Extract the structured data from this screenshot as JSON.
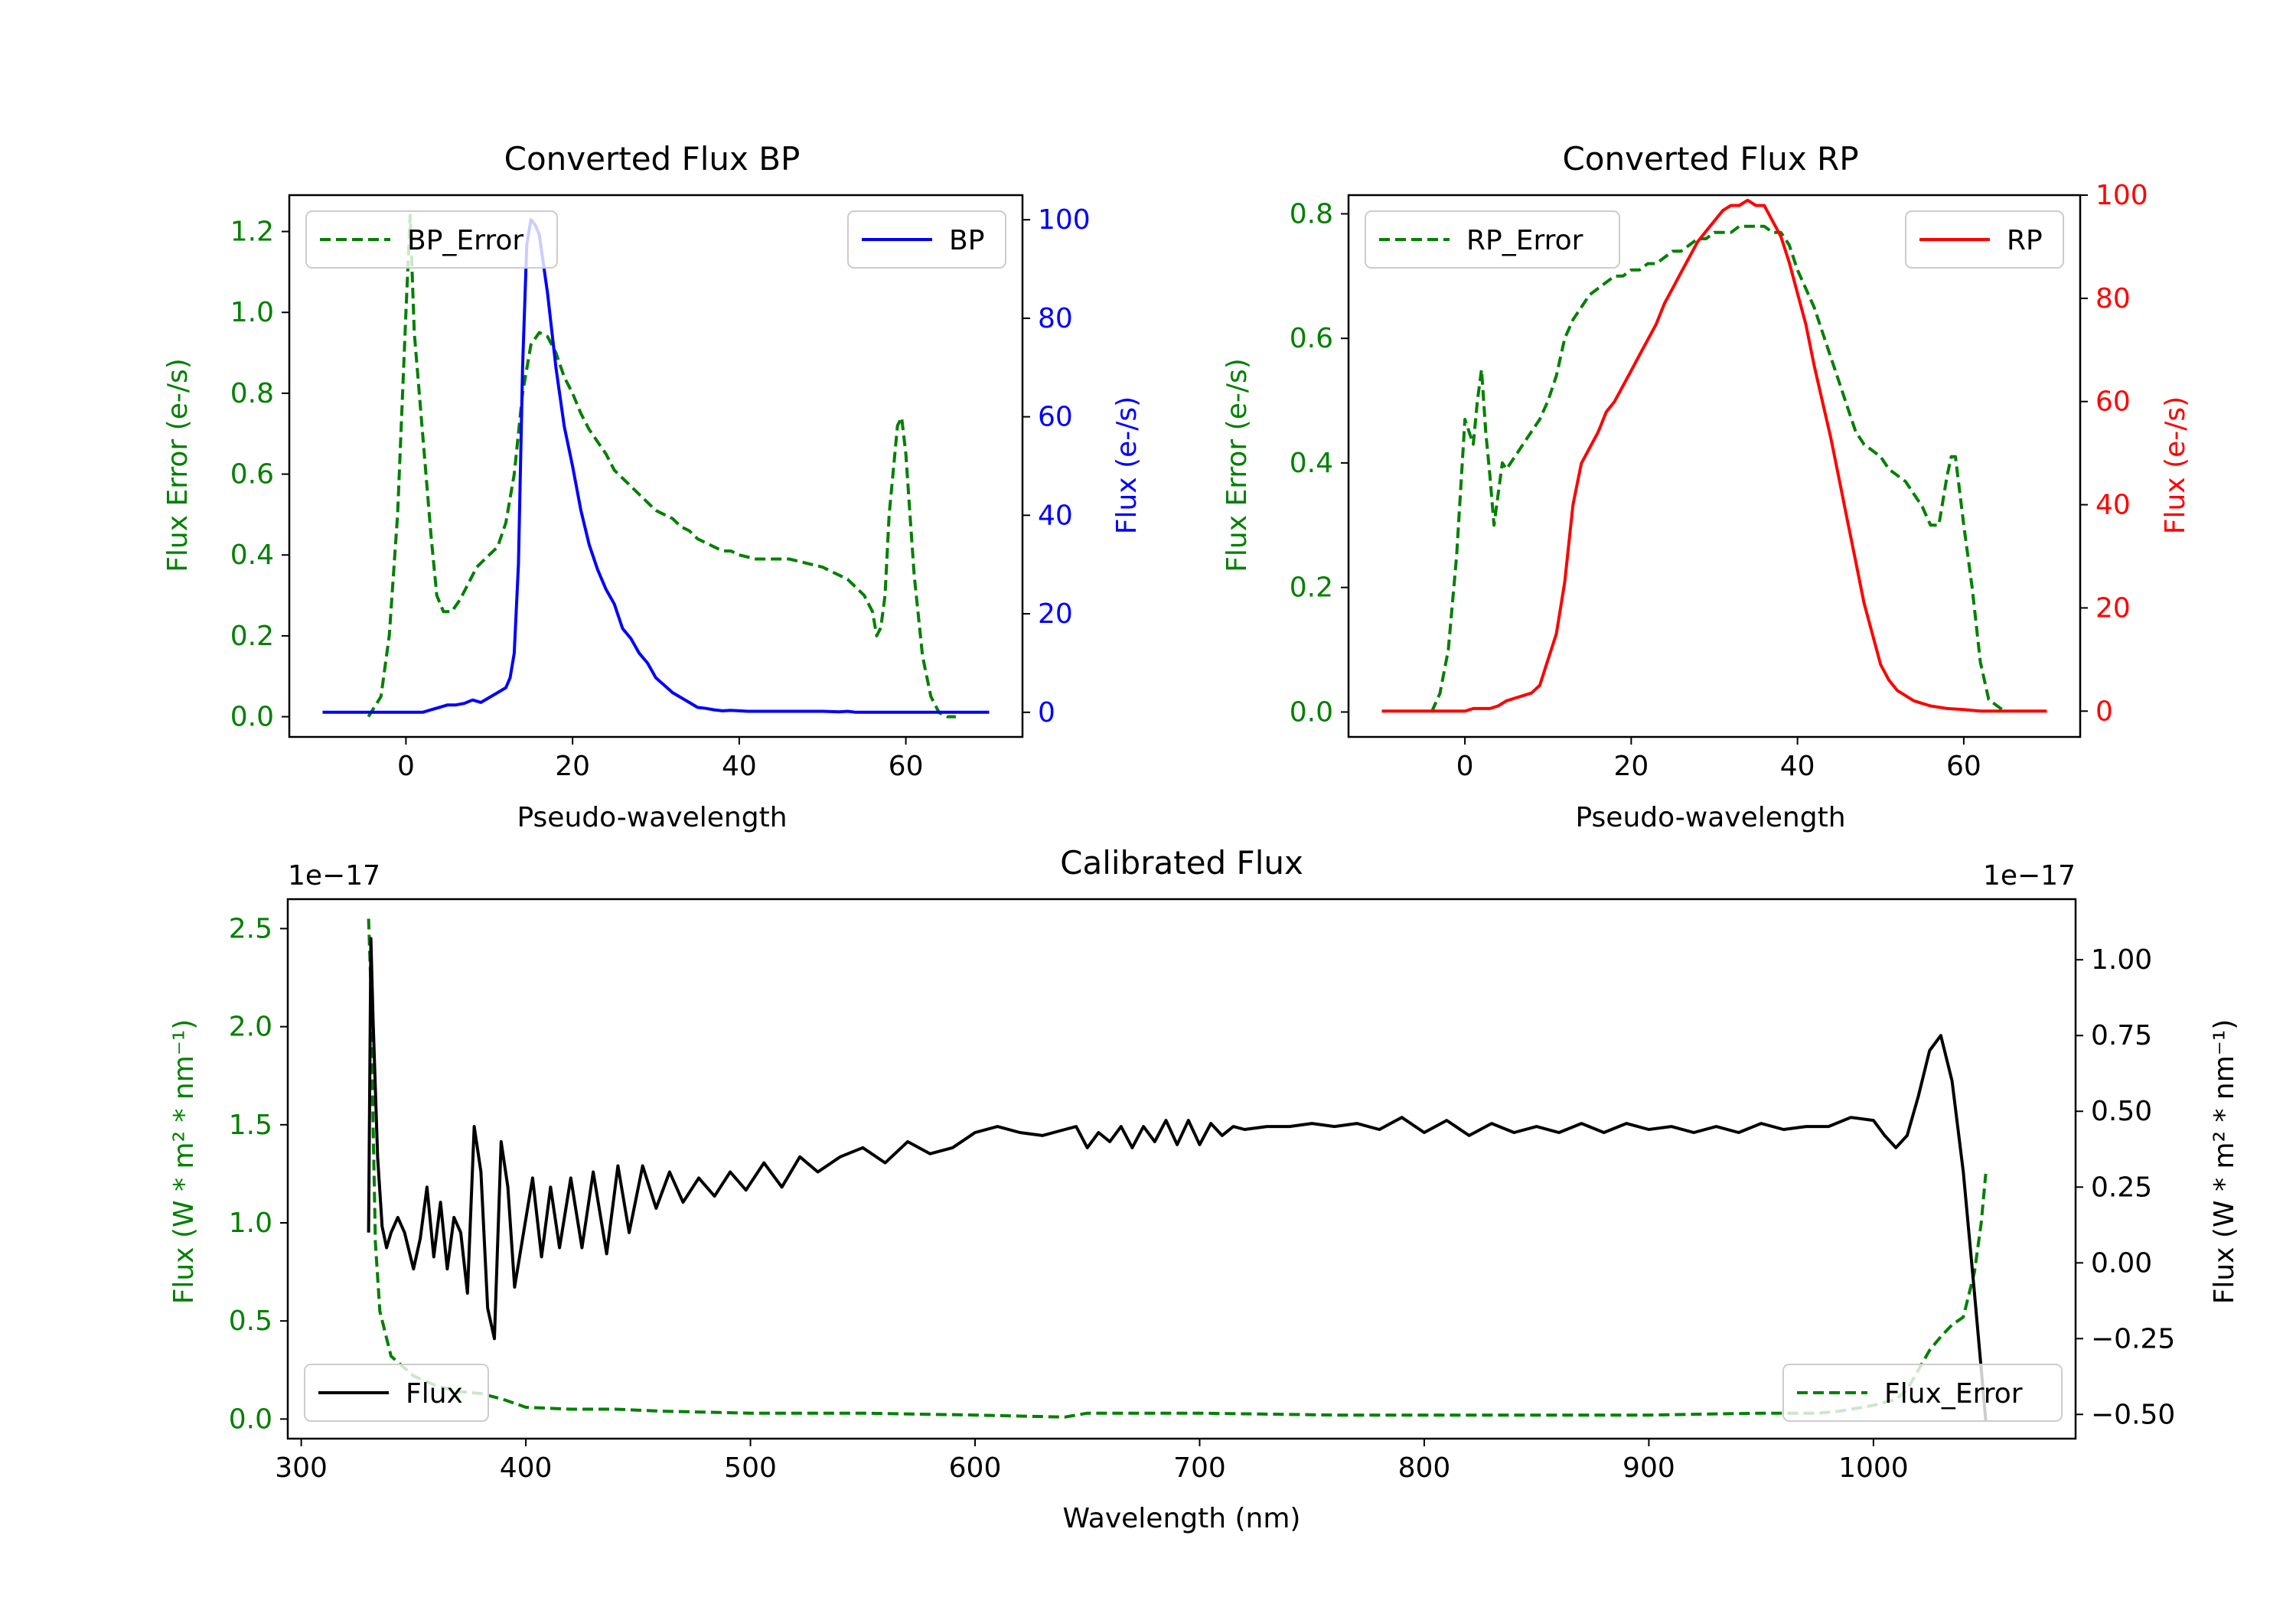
{
  "colors": {
    "error": "#008000",
    "bp": "#0000ff",
    "rp": "#ff0000",
    "flux": "#000000",
    "axis": "#000000"
  },
  "chart_data": [
    {
      "id": "bp",
      "type": "line",
      "title": "Converted Flux BP",
      "xlabel": "Pseudo-wavelength",
      "ylabel_left": "Flux Error (e-/s)",
      "ylabel_right": "Flux (e-/s)",
      "xlim": [
        -14,
        74
      ],
      "ylim_left": [
        -0.05,
        1.29
      ],
      "ylim_right": [
        -5,
        105
      ],
      "xticks": [
        0,
        20,
        40,
        60
      ],
      "yticks_left": [
        "0.0",
        "0.2",
        "0.4",
        "0.6",
        "0.8",
        "1.0",
        "1.2"
      ],
      "yticks_right": [
        "0",
        "20",
        "40",
        "60",
        "80",
        "100"
      ],
      "series": [
        {
          "name": "BP_Error",
          "axis": "left",
          "style": "dashed",
          "color": "#008000",
          "x": [
            -4.5,
            -3,
            -2,
            -1,
            0,
            0.5,
            1,
            2,
            3,
            3.7,
            4.5,
            5.5,
            6.5,
            7.5,
            8.5,
            9.5,
            11,
            12,
            13,
            14,
            15,
            16,
            17,
            18,
            19,
            20,
            21,
            22,
            23,
            24,
            25,
            26,
            27,
            28,
            29,
            30,
            31,
            32,
            33,
            34,
            35,
            36,
            37,
            38,
            39,
            40,
            42,
            44,
            46,
            48,
            50,
            52,
            53,
            54,
            55,
            56,
            56.5,
            57,
            57.5,
            58,
            59,
            59.5,
            60,
            60.5,
            61,
            62,
            63,
            64,
            65,
            66
          ],
          "y": [
            0.0,
            0.05,
            0.2,
            0.5,
            1.0,
            1.24,
            0.95,
            0.7,
            0.45,
            0.3,
            0.26,
            0.26,
            0.29,
            0.33,
            0.37,
            0.39,
            0.42,
            0.48,
            0.6,
            0.8,
            0.92,
            0.95,
            0.94,
            0.9,
            0.84,
            0.8,
            0.75,
            0.71,
            0.68,
            0.65,
            0.61,
            0.59,
            0.57,
            0.55,
            0.53,
            0.51,
            0.5,
            0.49,
            0.47,
            0.46,
            0.44,
            0.43,
            0.42,
            0.41,
            0.41,
            0.4,
            0.39,
            0.39,
            0.39,
            0.38,
            0.37,
            0.35,
            0.34,
            0.32,
            0.3,
            0.26,
            0.2,
            0.22,
            0.3,
            0.5,
            0.72,
            0.74,
            0.65,
            0.5,
            0.35,
            0.15,
            0.05,
            0.01,
            0.0,
            0.0
          ]
        },
        {
          "name": "BP",
          "axis": "right",
          "style": "solid",
          "color": "#0000ff",
          "x": [
            -10,
            -6,
            -2,
            0,
            2,
            3,
            4,
            5,
            6,
            7,
            8,
            9,
            10,
            11,
            12,
            12.5,
            13,
            13.5,
            14,
            14.5,
            15,
            15.5,
            16,
            17,
            18,
            19,
            20,
            21,
            22,
            23,
            24,
            25,
            26,
            27,
            28,
            29,
            30,
            31,
            32,
            33,
            34,
            35,
            36,
            37,
            38,
            39,
            40,
            41,
            42,
            44,
            46,
            48,
            50,
            52,
            53,
            54,
            56,
            60,
            65,
            70
          ],
          "y": [
            0,
            0,
            0,
            0,
            0,
            0.5,
            1,
            1.5,
            1.5,
            1.8,
            2.5,
            2,
            3,
            4,
            5,
            7,
            12,
            30,
            70,
            95,
            100,
            99,
            97,
            85,
            70,
            58,
            50,
            41,
            34,
            29,
            25,
            22,
            17,
            15,
            12,
            10,
            7,
            5.5,
            4,
            3,
            2,
            1,
            0.8,
            0.5,
            0.3,
            0.4,
            0.3,
            0.2,
            0.2,
            0.2,
            0.2,
            0.2,
            0.2,
            0.1,
            0.2,
            0,
            0,
            0,
            0,
            0
          ]
        }
      ],
      "legend": [
        {
          "label": "BP_Error",
          "position": "upper-left"
        },
        {
          "label": "BP",
          "position": "upper-right"
        }
      ]
    },
    {
      "id": "rp",
      "type": "line",
      "title": "Converted Flux RP",
      "xlabel": "Pseudo-wavelength",
      "ylabel_left": "Flux Error (e-/s)",
      "ylabel_right": "Flux (e-/s)",
      "xlim": [
        -14,
        74
      ],
      "ylim_left": [
        -0.04,
        0.83
      ],
      "ylim_right": [
        -5,
        100
      ],
      "xticks": [
        0,
        20,
        40,
        60
      ],
      "yticks_left": [
        "0.0",
        "0.2",
        "0.4",
        "0.6",
        "0.8"
      ],
      "yticks_right": [
        "0",
        "20",
        "40",
        "60",
        "80",
        "100"
      ],
      "series": [
        {
          "name": "RP_Error",
          "axis": "left",
          "style": "dashed",
          "color": "#008000",
          "x": [
            -4,
            -3,
            -2,
            -1,
            0,
            0.5,
            1,
            1.5,
            2,
            2.5,
            3,
            3.5,
            4,
            4.5,
            5,
            6,
            7,
            8,
            9,
            10,
            11,
            12,
            13,
            14,
            15,
            16,
            17,
            18,
            19,
            20,
            21,
            22,
            23,
            24,
            25,
            26,
            27,
            28,
            29,
            30,
            31,
            32,
            33,
            34,
            35,
            36,
            37,
            38,
            39,
            40,
            41,
            42,
            43,
            44,
            45,
            46,
            47,
            48,
            49,
            50,
            51,
            52,
            53,
            54,
            55,
            56,
            57,
            58,
            58.5,
            59,
            60,
            61,
            62,
            63,
            64,
            65
          ],
          "y": [
            0.0,
            0.03,
            0.1,
            0.25,
            0.47,
            0.45,
            0.43,
            0.5,
            0.55,
            0.45,
            0.38,
            0.3,
            0.35,
            0.4,
            0.39,
            0.41,
            0.43,
            0.45,
            0.47,
            0.5,
            0.54,
            0.6,
            0.63,
            0.65,
            0.67,
            0.68,
            0.69,
            0.7,
            0.7,
            0.71,
            0.71,
            0.72,
            0.72,
            0.73,
            0.74,
            0.74,
            0.75,
            0.76,
            0.76,
            0.77,
            0.77,
            0.77,
            0.78,
            0.78,
            0.78,
            0.78,
            0.77,
            0.77,
            0.75,
            0.71,
            0.68,
            0.65,
            0.61,
            0.57,
            0.53,
            0.49,
            0.45,
            0.43,
            0.42,
            0.41,
            0.39,
            0.38,
            0.37,
            0.35,
            0.33,
            0.3,
            0.3,
            0.38,
            0.41,
            0.41,
            0.3,
            0.2,
            0.08,
            0.02,
            0.01,
            0.0
          ]
        },
        {
          "name": "RP",
          "axis": "right",
          "style": "solid",
          "color": "#ff0000",
          "x": [
            -10,
            -6,
            -2,
            0,
            1,
            2,
            3,
            4,
            5,
            6,
            7,
            8,
            9,
            10,
            11,
            12,
            13,
            14,
            15,
            16,
            17,
            18,
            19,
            20,
            21,
            22,
            23,
            24,
            25,
            26,
            27,
            28,
            29,
            30,
            31,
            32,
            33,
            34,
            35,
            36,
            37,
            38,
            39,
            40,
            41,
            42,
            43,
            44,
            45,
            46,
            47,
            48,
            49,
            50,
            51,
            52,
            53,
            54,
            55,
            56,
            58,
            60,
            62,
            65,
            70
          ],
          "y": [
            0,
            0,
            0,
            0,
            0.5,
            0.5,
            0.5,
            1,
            2,
            2.5,
            3,
            3.5,
            5,
            10,
            15,
            25,
            40,
            48,
            51,
            54,
            58,
            60,
            63,
            66,
            69,
            72,
            75,
            79,
            82,
            85,
            88,
            91,
            93,
            95,
            97,
            98,
            98,
            99,
            98,
            98,
            95,
            92,
            87,
            81,
            75,
            67,
            60,
            53,
            45,
            37,
            29,
            21,
            15,
            9,
            6,
            4,
            3,
            2,
            1.5,
            1,
            0.5,
            0.3,
            0,
            0,
            0
          ]
        }
      ],
      "legend": [
        {
          "label": "RP_Error",
          "position": "upper-left"
        },
        {
          "label": "RP",
          "position": "upper-right"
        }
      ]
    },
    {
      "id": "cal",
      "type": "line",
      "title": "Calibrated Flux",
      "xlabel": "Wavelength (nm)",
      "ylabel_left": "Flux (W * m² * nm⁻¹)",
      "ylabel_right": "Flux (W * m² * nm⁻¹)",
      "offset_left": "1e−17",
      "offset_right": "1e−17",
      "xlim": [
        294,
        1090
      ],
      "ylim_left": [
        -0.1,
        2.65
      ],
      "ylim_right": [
        -0.58,
        1.2
      ],
      "xticks": [
        300,
        400,
        500,
        600,
        700,
        800,
        900,
        1000
      ],
      "yticks_left": [
        "0.0",
        "0.5",
        "1.0",
        "1.5",
        "2.0",
        "2.5"
      ],
      "yticks_right": [
        "−0.50",
        "−0.25",
        "0.00",
        "0.25",
        "0.50",
        "0.75",
        "1.00"
      ],
      "series": [
        {
          "name": "Flux_Error",
          "axis": "left",
          "style": "dashed",
          "color": "#008000",
          "x": [
            330,
            331,
            332,
            333,
            335,
            340,
            350,
            360,
            370,
            380,
            390,
            400,
            420,
            440,
            460,
            500,
            550,
            600,
            640,
            650,
            700,
            760,
            800,
            900,
            950,
            975,
            985,
            990,
            1000,
            1010,
            1015,
            1020,
            1025,
            1030,
            1035,
            1040,
            1045,
            1048,
            1050
          ],
          "y": [
            2.55,
            2.2,
            1.5,
            0.9,
            0.55,
            0.32,
            0.22,
            0.17,
            0.14,
            0.13,
            0.1,
            0.06,
            0.05,
            0.05,
            0.04,
            0.03,
            0.03,
            0.02,
            0.01,
            0.03,
            0.03,
            0.02,
            0.02,
            0.02,
            0.03,
            0.03,
            0.04,
            0.05,
            0.07,
            0.1,
            0.15,
            0.25,
            0.35,
            0.42,
            0.48,
            0.52,
            0.75,
            1.0,
            1.25
          ]
        },
        {
          "name": "Flux",
          "axis": "right",
          "style": "solid",
          "color": "#000000",
          "x": [
            330,
            331,
            332,
            334,
            336,
            338,
            340,
            343,
            346,
            350,
            353,
            356,
            359,
            362,
            365,
            368,
            371,
            374,
            377,
            380,
            383,
            386,
            389,
            392,
            395,
            399,
            403,
            407,
            411,
            415,
            420,
            425,
            430,
            436,
            441,
            446,
            452,
            458,
            464,
            470,
            477,
            484,
            491,
            498,
            506,
            514,
            522,
            530,
            540,
            550,
            560,
            570,
            580,
            590,
            600,
            610,
            620,
            630,
            640,
            645,
            650,
            655,
            660,
            665,
            670,
            675,
            680,
            685,
            690,
            695,
            700,
            705,
            710,
            715,
            720,
            730,
            740,
            750,
            760,
            770,
            780,
            790,
            800,
            810,
            820,
            830,
            840,
            850,
            860,
            870,
            880,
            890,
            900,
            910,
            920,
            930,
            940,
            950,
            960,
            970,
            980,
            990,
            1000,
            1005,
            1010,
            1015,
            1020,
            1025,
            1030,
            1035,
            1040,
            1045,
            1048,
            1050
          ],
          "y": [
            0.1,
            1.07,
            0.8,
            0.35,
            0.12,
            0.05,
            0.1,
            0.15,
            0.1,
            -0.02,
            0.08,
            0.25,
            0.02,
            0.2,
            -0.02,
            0.15,
            0.1,
            -0.1,
            0.45,
            0.3,
            -0.15,
            -0.25,
            0.4,
            0.25,
            -0.08,
            0.1,
            0.28,
            0.02,
            0.25,
            0.05,
            0.28,
            0.05,
            0.3,
            0.03,
            0.32,
            0.1,
            0.32,
            0.18,
            0.3,
            0.2,
            0.28,
            0.22,
            0.3,
            0.24,
            0.33,
            0.25,
            0.35,
            0.3,
            0.35,
            0.38,
            0.33,
            0.4,
            0.36,
            0.38,
            0.43,
            0.45,
            0.43,
            0.42,
            0.44,
            0.45,
            0.38,
            0.43,
            0.4,
            0.45,
            0.38,
            0.45,
            0.4,
            0.47,
            0.39,
            0.47,
            0.39,
            0.46,
            0.42,
            0.45,
            0.44,
            0.45,
            0.45,
            0.46,
            0.45,
            0.46,
            0.44,
            0.48,
            0.43,
            0.47,
            0.42,
            0.46,
            0.43,
            0.45,
            0.43,
            0.46,
            0.43,
            0.46,
            0.44,
            0.45,
            0.43,
            0.45,
            0.43,
            0.46,
            0.44,
            0.45,
            0.45,
            0.48,
            0.47,
            0.42,
            0.38,
            0.42,
            0.55,
            0.7,
            0.75,
            0.6,
            0.3,
            -0.1,
            -0.35,
            -0.52
          ]
        }
      ],
      "legend": [
        {
          "label": "Flux",
          "position": "lower-left"
        },
        {
          "label": "Flux_Error",
          "position": "lower-right"
        }
      ]
    }
  ]
}
